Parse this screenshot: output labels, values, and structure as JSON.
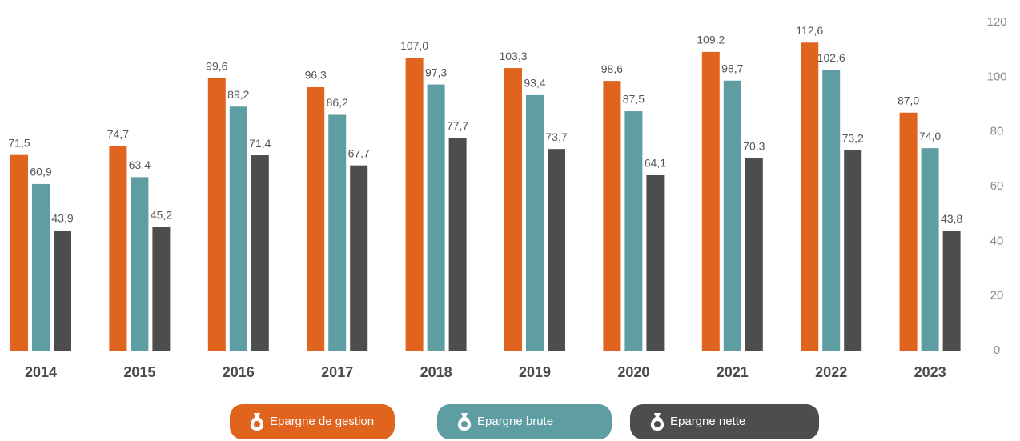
{
  "chart_data": {
    "type": "bar",
    "categories": [
      "2014",
      "2015",
      "2016",
      "2017",
      "2018",
      "2019",
      "2020",
      "2021",
      "2022",
      "2023"
    ],
    "series": [
      {
        "name": "Epargne de gestion",
        "color": "#e0641e",
        "values": [
          71.5,
          74.7,
          99.6,
          96.3,
          107.0,
          103.3,
          98.6,
          109.2,
          112.6,
          87.0
        ],
        "value_labels": [
          "71,5",
          "74,7",
          "99,6",
          "96,3",
          "107,0",
          "103,3",
          "98,6",
          "109,2",
          "112,6",
          "87,0"
        ]
      },
      {
        "name": "Epargne brute",
        "color": "#5e9ea3",
        "values": [
          60.9,
          63.4,
          89.2,
          86.2,
          97.3,
          93.4,
          87.5,
          98.7,
          102.6,
          74.0
        ],
        "value_labels": [
          "60,9",
          "63,4",
          "89,2",
          "86,2",
          "97,3",
          "93,4",
          "87,5",
          "98,7",
          "102,6",
          "74,0"
        ]
      },
      {
        "name": "Epargne nette",
        "color": "#4d4d4d",
        "values": [
          43.9,
          45.2,
          71.4,
          67.7,
          77.7,
          73.7,
          64.1,
          70.3,
          73.2,
          43.8
        ],
        "value_labels": [
          "43,9",
          "45,2",
          "71,4",
          "67,7",
          "77,7",
          "73,7",
          "64,1",
          "70,3",
          "73,2",
          "43,8"
        ]
      }
    ],
    "ylim": [
      0,
      120
    ],
    "yticks": [
      0,
      20,
      40,
      60,
      80,
      100,
      120
    ],
    "y_axis_side": "right",
    "grid": false
  }
}
